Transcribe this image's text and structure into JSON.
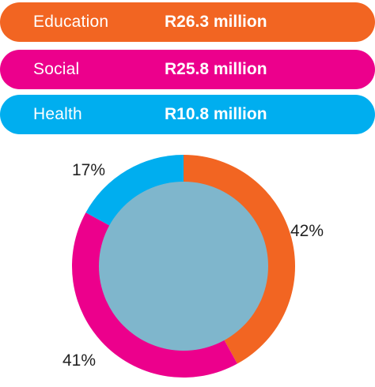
{
  "summary": {
    "rows": [
      {
        "label": "Education",
        "amount": "R26.3 million",
        "color": "#f26522"
      },
      {
        "label": "Social",
        "amount": "R25.8 million",
        "color": "#ec008c"
      },
      {
        "label": "Health",
        "amount": "R10.8 million",
        "color": "#00aeef"
      }
    ]
  },
  "chart_data": {
    "type": "pie",
    "donut": true,
    "center_color": "#7fb6cc",
    "categories": [
      "Education",
      "Social",
      "Health"
    ],
    "values": [
      42,
      41,
      17
    ],
    "value_labels": [
      "42%",
      "41%",
      "17%"
    ],
    "colors": [
      "#f26522",
      "#ec008c",
      "#00aeef"
    ],
    "unit": "%",
    "title": "",
    "legend": "none"
  }
}
